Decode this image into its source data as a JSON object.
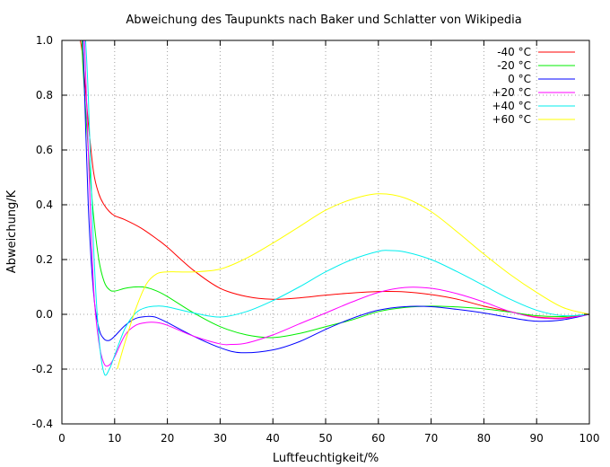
{
  "chart_data": {
    "type": "line",
    "title": "Abweichung des Taupunkts nach Baker und Schlatter von Wikipedia",
    "xlabel": "Luftfeuchtigkeit/%",
    "ylabel": "Abweichung/K",
    "xlim": [
      0,
      100
    ],
    "ylim": [
      -0.4,
      1.0
    ],
    "xticks": [
      "0",
      "10",
      "20",
      "30",
      "40",
      "50",
      "60",
      "70",
      "80",
      "90",
      "100"
    ],
    "yticks": [
      "-0.4",
      "-0.2",
      "0.0",
      "0.2",
      "0.4",
      "0.6",
      "0.8",
      "1.0"
    ],
    "grid": true,
    "legend_position": "top-right",
    "series": [
      {
        "name": "-40 °C",
        "color": "#ff0000",
        "x": [
          3.5,
          4,
          5,
          6,
          7,
          8,
          9,
          10,
          12,
          15,
          18,
          20,
          25,
          30,
          35,
          40,
          45,
          50,
          55,
          60,
          65,
          70,
          75,
          80,
          85,
          90,
          95,
          100
        ],
        "y": [
          1.0,
          0.93,
          0.7,
          0.52,
          0.44,
          0.4,
          0.375,
          0.36,
          0.345,
          0.315,
          0.275,
          0.245,
          0.16,
          0.095,
          0.065,
          0.055,
          0.06,
          0.07,
          0.078,
          0.083,
          0.082,
          0.072,
          0.055,
          0.03,
          0.01,
          -0.01,
          -0.013,
          0.0
        ]
      },
      {
        "name": "-20 °C",
        "color": "#00ee00",
        "x": [
          3.8,
          4,
          5,
          6,
          7,
          8,
          9,
          10,
          12,
          14,
          16,
          18,
          20,
          25,
          30,
          35,
          40,
          45,
          50,
          55,
          60,
          65,
          70,
          75,
          80,
          85,
          90,
          95,
          100
        ],
        "y": [
          1.0,
          0.9,
          0.6,
          0.36,
          0.2,
          0.12,
          0.09,
          0.085,
          0.095,
          0.1,
          0.098,
          0.085,
          0.065,
          0.005,
          -0.045,
          -0.075,
          -0.085,
          -0.07,
          -0.045,
          -0.02,
          0.01,
          0.025,
          0.03,
          0.027,
          0.02,
          0.008,
          -0.005,
          -0.008,
          0.0
        ]
      },
      {
        "name": "0 °C",
        "color": "#0000ff",
        "x": [
          4,
          5,
          6,
          7,
          8,
          9,
          10,
          12,
          14,
          16,
          17,
          18,
          20,
          25,
          30,
          34,
          40,
          45,
          50,
          55,
          60,
          65,
          70,
          75,
          80,
          85,
          90,
          95,
          100
        ],
        "y": [
          1.0,
          0.4,
          0.08,
          -0.05,
          -0.09,
          -0.095,
          -0.08,
          -0.04,
          -0.015,
          -0.008,
          -0.008,
          -0.012,
          -0.03,
          -0.08,
          -0.122,
          -0.14,
          -0.13,
          -0.1,
          -0.055,
          -0.015,
          0.015,
          0.028,
          0.028,
          0.018,
          0.005,
          -0.012,
          -0.025,
          -0.02,
          0.0
        ]
      },
      {
        "name": "+20 °C",
        "color": "#ff00ff",
        "x": [
          4.3,
          5,
          6,
          7,
          8,
          9,
          10,
          12,
          14,
          16,
          18,
          20,
          25,
          30,
          32,
          35,
          40,
          45,
          50,
          55,
          60,
          65,
          70,
          75,
          80,
          85,
          90,
          95,
          100
        ],
        "y": [
          1.0,
          0.6,
          0.1,
          -0.1,
          -0.18,
          -0.185,
          -0.155,
          -0.075,
          -0.04,
          -0.03,
          -0.03,
          -0.04,
          -0.08,
          -0.108,
          -0.11,
          -0.105,
          -0.075,
          -0.035,
          0.005,
          0.045,
          0.08,
          0.098,
          0.095,
          0.075,
          0.045,
          0.01,
          -0.012,
          -0.015,
          0.0
        ]
      },
      {
        "name": "+40 °C",
        "color": "#00eeee",
        "x": [
          4.5,
          5,
          6,
          7,
          8,
          9,
          10,
          12,
          14,
          16,
          18,
          20,
          25,
          30,
          35,
          40,
          45,
          50,
          55,
          60,
          62,
          65,
          70,
          75,
          80,
          85,
          90,
          95,
          100
        ],
        "y": [
          1.0,
          0.8,
          0.25,
          -0.08,
          -0.215,
          -0.2,
          -0.15,
          -0.05,
          0.005,
          0.025,
          0.03,
          0.027,
          0.005,
          -0.01,
          0.01,
          0.05,
          0.1,
          0.155,
          0.2,
          0.23,
          0.233,
          0.228,
          0.2,
          0.155,
          0.105,
          0.055,
          0.015,
          -0.005,
          0.0
        ]
      },
      {
        "name": "+60 °C",
        "color": "#ffff00",
        "x": [
          10.5,
          12,
          14,
          16,
          18,
          20,
          22,
          25,
          30,
          35,
          40,
          45,
          50,
          55,
          60,
          65,
          70,
          75,
          80,
          85,
          90,
          95,
          100
        ],
        "y": [
          -0.2,
          -0.1,
          0.02,
          0.11,
          0.148,
          0.155,
          0.155,
          0.155,
          0.165,
          0.205,
          0.26,
          0.32,
          0.38,
          0.42,
          0.44,
          0.425,
          0.375,
          0.3,
          0.22,
          0.145,
          0.08,
          0.025,
          0.0
        ]
      }
    ]
  }
}
